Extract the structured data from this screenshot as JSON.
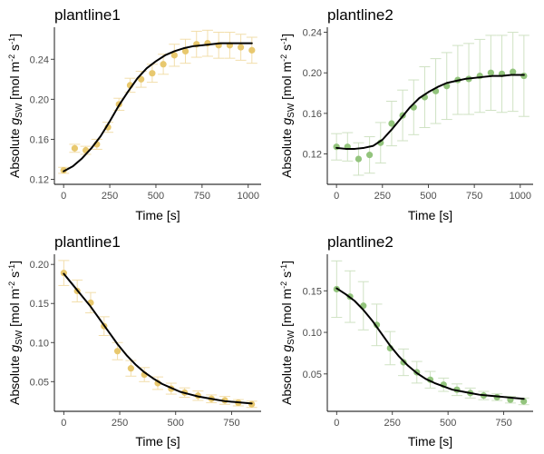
{
  "chart_data": [
    {
      "type": "scatter",
      "title": "plantline1",
      "xlabel": "Time [s]",
      "ylabel": {
        "prefix": "Absolute ",
        "var": "g",
        "sub": "SW",
        "unit_open": " [mol m",
        "sup1": "-2",
        "unit_mid": " s",
        "sup2": "-1",
        "unit_close": "]"
      },
      "xlim": [
        -50,
        1070
      ],
      "ylim": [
        0.115,
        0.272
      ],
      "x_ticks": [
        0,
        250,
        500,
        750,
        1000
      ],
      "x_tick_labels": [
        "0",
        "250",
        "500",
        "750",
        "1000"
      ],
      "y_ticks": [
        0.12,
        0.16,
        0.2,
        0.24
      ],
      "y_tick_labels": [
        "0.12",
        "0.16",
        "0.20",
        "0.24"
      ],
      "grid": false,
      "point_color": "#E8C86E",
      "error_color": "#F2DEAB",
      "line_color": "#000000",
      "series": [
        {
          "x": [
            0,
            60,
            120,
            180,
            240,
            300,
            360,
            420,
            480,
            540,
            600,
            660,
            720,
            780,
            840,
            900,
            960,
            1020
          ],
          "y": [
            0.129,
            0.151,
            0.149,
            0.155,
            0.172,
            0.195,
            0.214,
            0.22,
            0.226,
            0.235,
            0.244,
            0.248,
            0.255,
            0.256,
            0.254,
            0.254,
            0.252,
            0.249
          ],
          "err": [
            0.003,
            0.004,
            0.004,
            0.005,
            0.005,
            0.006,
            0.007,
            0.008,
            0.009,
            0.01,
            0.011,
            0.012,
            0.013,
            0.013,
            0.013,
            0.013,
            0.013,
            0.013
          ]
        }
      ],
      "fit": {
        "x": [
          0,
          50,
          100,
          150,
          200,
          250,
          300,
          350,
          400,
          450,
          500,
          550,
          600,
          650,
          700,
          750,
          800,
          850,
          900,
          950,
          1000,
          1020
        ],
        "y": [
          0.128,
          0.133,
          0.141,
          0.151,
          0.163,
          0.178,
          0.194,
          0.208,
          0.221,
          0.231,
          0.238,
          0.244,
          0.248,
          0.251,
          0.253,
          0.254,
          0.255,
          0.256,
          0.256,
          0.256,
          0.256,
          0.256
        ]
      }
    },
    {
      "type": "scatter",
      "title": "plantline2",
      "xlabel": "Time [s]",
      "ylabel": {
        "prefix": "Absolute ",
        "var": "g",
        "sub": "SW",
        "unit_open": " [mol m",
        "sup1": "-2",
        "unit_mid": " s",
        "sup2": "-1",
        "unit_close": "]"
      },
      "xlim": [
        -50,
        1070
      ],
      "ylim": [
        0.09,
        0.245
      ],
      "x_ticks": [
        0,
        250,
        500,
        750,
        1000
      ],
      "x_tick_labels": [
        "0",
        "250",
        "500",
        "750",
        "1000"
      ],
      "y_ticks": [
        0.12,
        0.16,
        0.2,
        0.24
      ],
      "y_tick_labels": [
        "0.12",
        "0.16",
        "0.20",
        "0.24"
      ],
      "grid": false,
      "point_color": "#93C47D",
      "error_color": "#CFE2C3",
      "line_color": "#000000",
      "series": [
        {
          "x": [
            0,
            60,
            120,
            180,
            240,
            300,
            360,
            420,
            480,
            540,
            600,
            660,
            720,
            780,
            840,
            900,
            960,
            1020
          ],
          "y": [
            0.127,
            0.127,
            0.115,
            0.119,
            0.131,
            0.15,
            0.158,
            0.166,
            0.176,
            0.182,
            0.187,
            0.193,
            0.194,
            0.197,
            0.2,
            0.199,
            0.201,
            0.197
          ],
          "err": [
            0.013,
            0.014,
            0.016,
            0.018,
            0.02,
            0.022,
            0.025,
            0.027,
            0.03,
            0.032,
            0.033,
            0.034,
            0.035,
            0.036,
            0.037,
            0.038,
            0.039,
            0.04
          ]
        }
      ],
      "fit": {
        "x": [
          0,
          50,
          100,
          150,
          200,
          250,
          300,
          350,
          400,
          450,
          500,
          550,
          600,
          650,
          700,
          750,
          800,
          850,
          900,
          950,
          1000,
          1020
        ],
        "y": [
          0.126,
          0.125,
          0.125,
          0.126,
          0.128,
          0.134,
          0.144,
          0.155,
          0.166,
          0.175,
          0.181,
          0.186,
          0.19,
          0.192,
          0.194,
          0.195,
          0.196,
          0.197,
          0.197,
          0.198,
          0.198,
          0.198
        ]
      }
    },
    {
      "type": "scatter",
      "title": "plantline1",
      "xlabel": "Time [s]",
      "ylabel": {
        "prefix": "Absolute ",
        "var": "g",
        "sub": "SW",
        "unit_open": " [mol m",
        "sup1": "-2",
        "unit_mid": " s",
        "sup2": "-1",
        "unit_close": "]"
      },
      "xlim": [
        -42,
        882
      ],
      "ylim": [
        0.012,
        0.213
      ],
      "x_ticks": [
        0,
        250,
        500,
        750
      ],
      "x_tick_labels": [
        "0",
        "250",
        "500",
        "750"
      ],
      "y_ticks": [
        0.05,
        0.1,
        0.15,
        0.2
      ],
      "y_tick_labels": [
        "0.05",
        "0.10",
        "0.15",
        "0.20"
      ],
      "grid": false,
      "point_color": "#E8C86E",
      "error_color": "#F2DEAB",
      "line_color": "#000000",
      "series": [
        {
          "x": [
            0,
            60,
            120,
            180,
            240,
            300,
            360,
            420,
            480,
            540,
            600,
            660,
            720,
            780,
            840
          ],
          "y": [
            0.189,
            0.166,
            0.151,
            0.121,
            0.089,
            0.067,
            0.059,
            0.048,
            0.041,
            0.036,
            0.032,
            0.028,
            0.026,
            0.023,
            0.021
          ],
          "err": [
            0.016,
            0.014,
            0.013,
            0.012,
            0.011,
            0.01,
            0.009,
            0.008,
            0.007,
            0.006,
            0.006,
            0.005,
            0.005,
            0.004,
            0.004
          ]
        }
      ],
      "fit": {
        "x": [
          0,
          40,
          80,
          120,
          160,
          200,
          240,
          280,
          320,
          360,
          400,
          440,
          480,
          520,
          560,
          600,
          640,
          680,
          720,
          760,
          800,
          840
        ],
        "y": [
          0.188,
          0.174,
          0.16,
          0.146,
          0.13,
          0.114,
          0.098,
          0.084,
          0.072,
          0.062,
          0.054,
          0.047,
          0.042,
          0.037,
          0.034,
          0.031,
          0.029,
          0.027,
          0.025,
          0.024,
          0.023,
          0.022
        ]
      }
    },
    {
      "type": "scatter",
      "title": "plantline2",
      "xlabel": "Time [s]",
      "ylabel": {
        "prefix": "Absolute ",
        "var": "g",
        "sub": "SW",
        "unit_open": " [mol m",
        "sup1": "-2",
        "unit_mid": " s",
        "sup2": "-1",
        "unit_close": "]"
      },
      "xlim": [
        -42,
        882
      ],
      "ylim": [
        0.005,
        0.194
      ],
      "x_ticks": [
        0,
        250,
        500,
        750
      ],
      "x_tick_labels": [
        "0",
        "250",
        "500",
        "750"
      ],
      "y_ticks": [
        0.05,
        0.1,
        0.15
      ],
      "y_tick_labels": [
        "0.05",
        "0.10",
        "0.15"
      ],
      "grid": false,
      "point_color": "#93C47D",
      "error_color": "#CFE2C3",
      "line_color": "#000000",
      "series": [
        {
          "x": [
            0,
            60,
            120,
            180,
            240,
            300,
            360,
            420,
            480,
            540,
            600,
            660,
            720,
            780,
            840
          ],
          "y": [
            0.152,
            0.143,
            0.132,
            0.109,
            0.081,
            0.064,
            0.052,
            0.043,
            0.037,
            0.031,
            0.027,
            0.024,
            0.022,
            0.019,
            0.017
          ],
          "err": [
            0.034,
            0.031,
            0.029,
            0.025,
            0.02,
            0.016,
            0.013,
            0.01,
            0.008,
            0.007,
            0.006,
            0.005,
            0.004,
            0.004,
            0.004
          ]
        }
      ],
      "fit": {
        "x": [
          0,
          40,
          80,
          120,
          160,
          200,
          240,
          280,
          320,
          360,
          400,
          440,
          480,
          520,
          560,
          600,
          640,
          680,
          720,
          760,
          800,
          840
        ],
        "y": [
          0.153,
          0.146,
          0.138,
          0.127,
          0.114,
          0.099,
          0.084,
          0.071,
          0.06,
          0.051,
          0.044,
          0.039,
          0.035,
          0.031,
          0.029,
          0.027,
          0.025,
          0.024,
          0.023,
          0.022,
          0.021,
          0.02
        ]
      }
    }
  ]
}
